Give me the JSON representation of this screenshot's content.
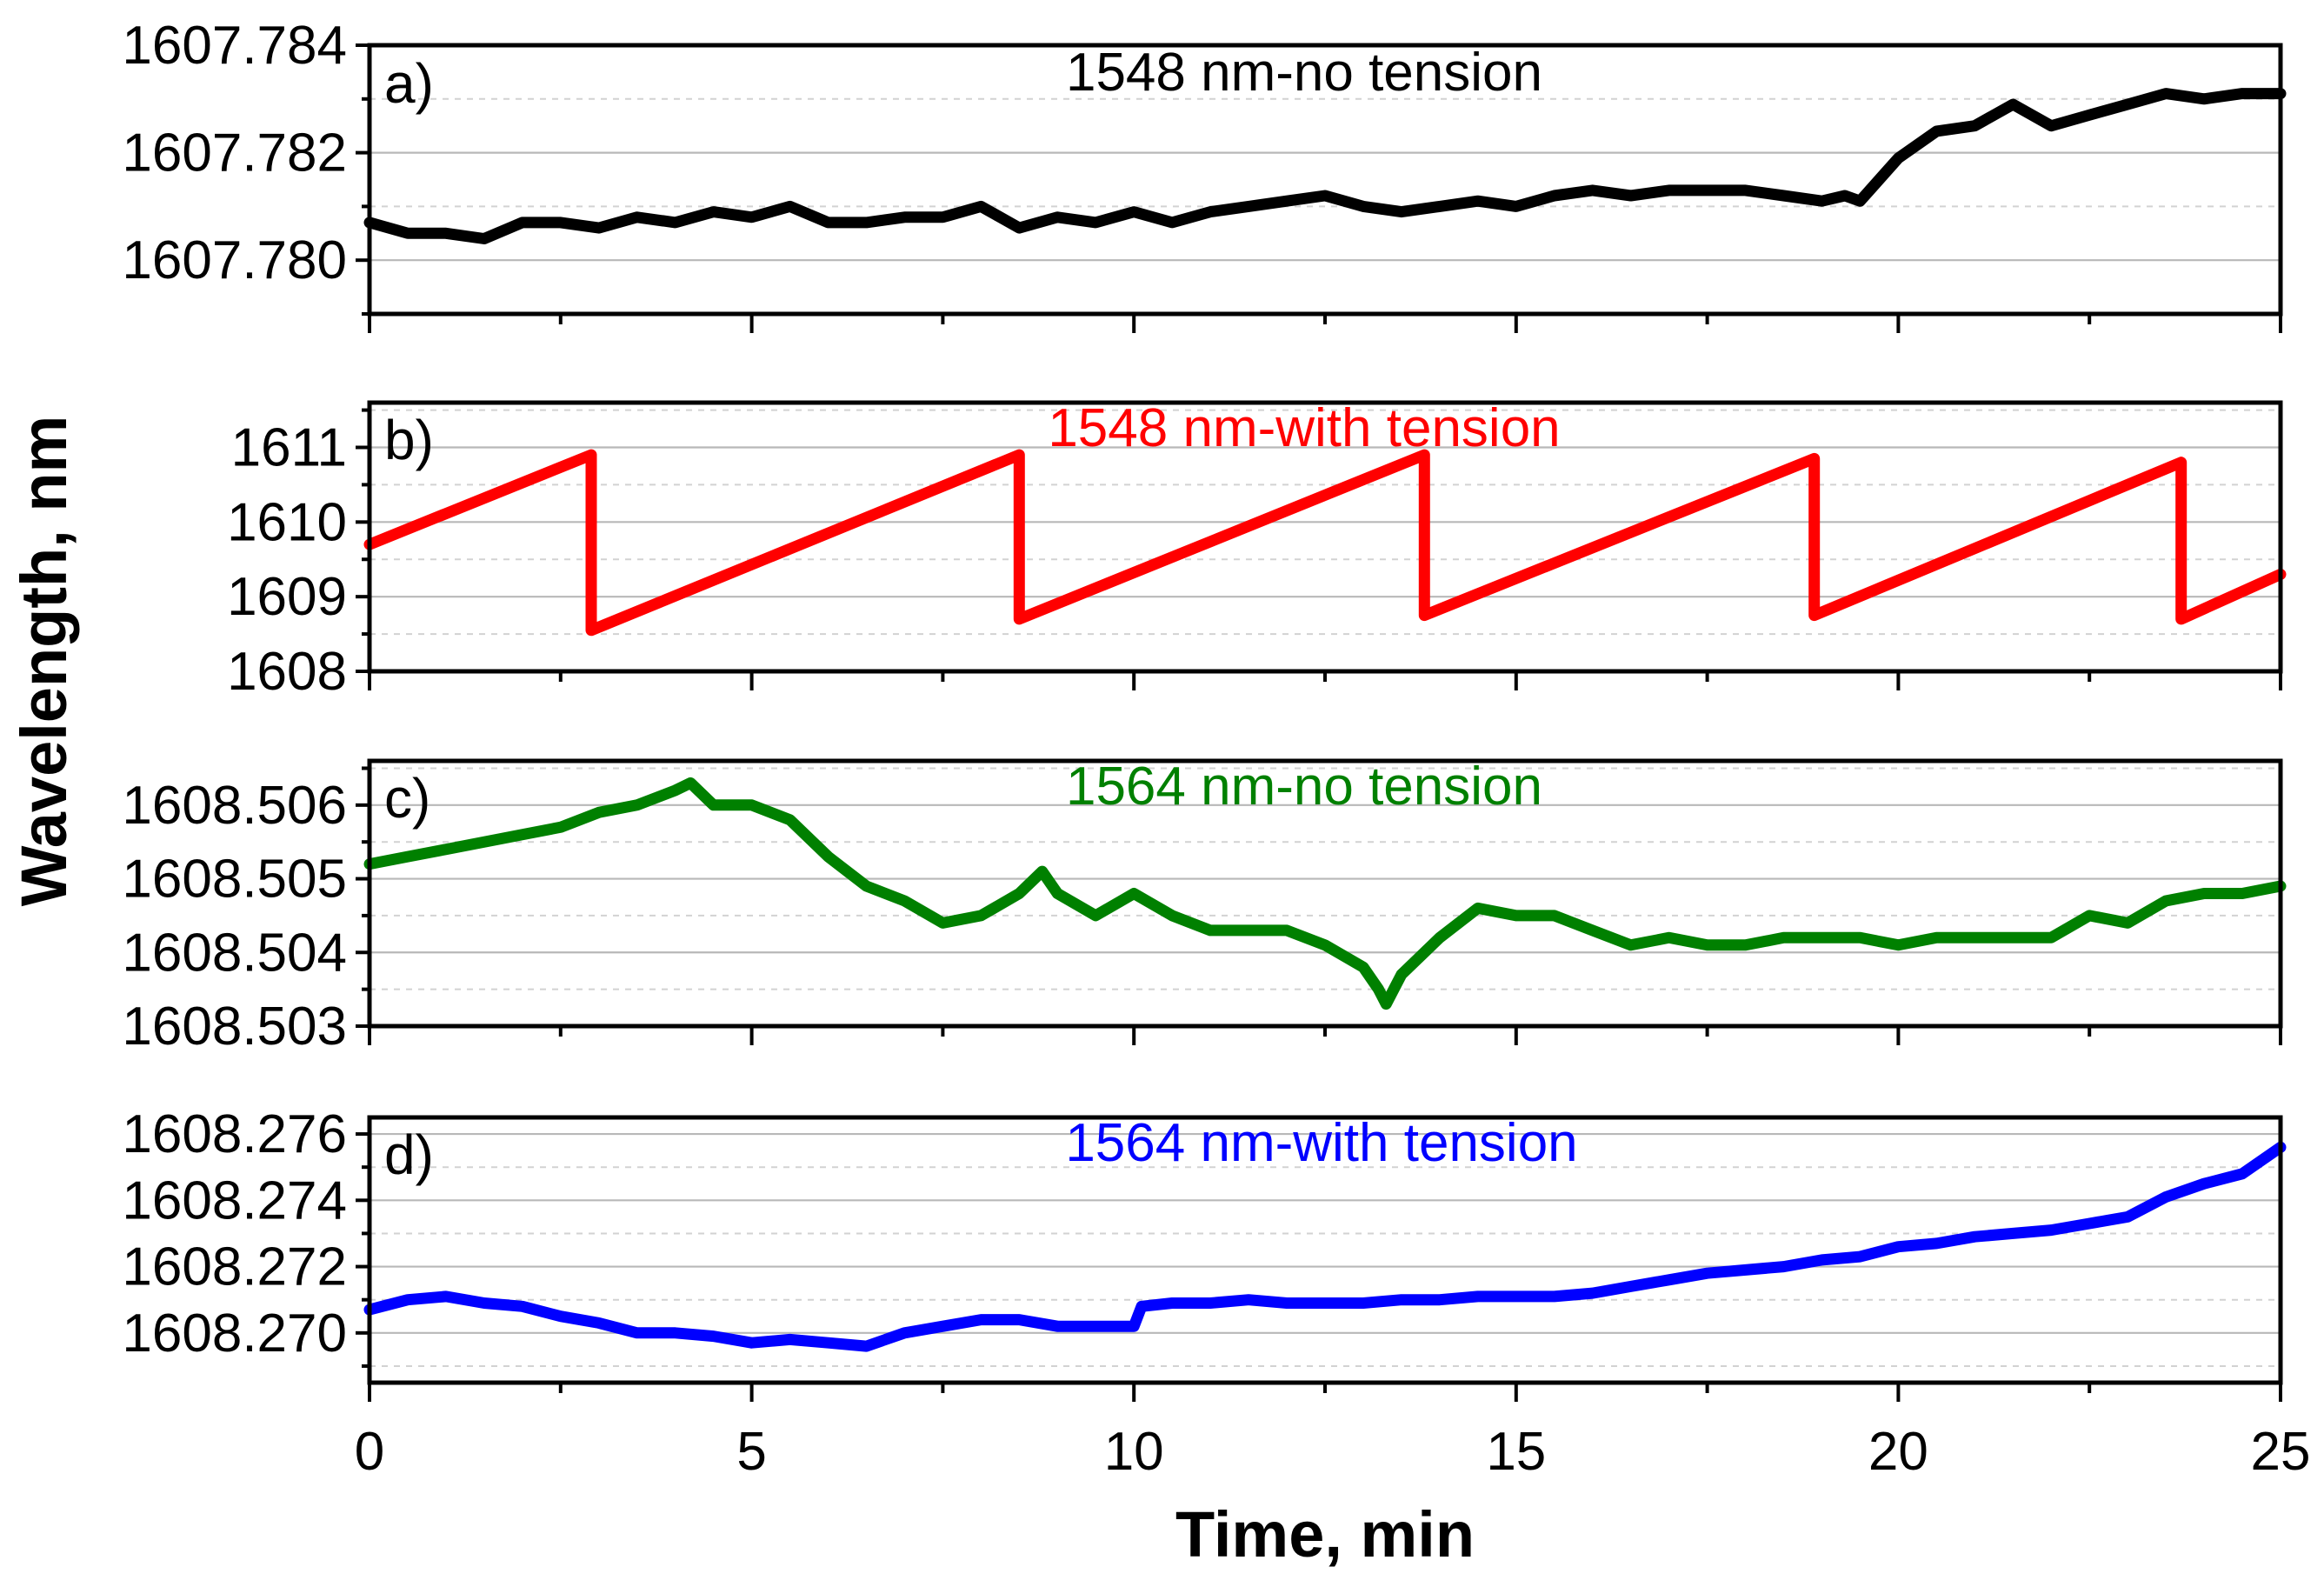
{
  "chart_data": {
    "type": "line",
    "shared_xlabel": "Time, min",
    "shared_ylabel": "Wavelength, nm",
    "xlim": [
      0,
      25
    ],
    "x_ticks": [
      "0",
      "5",
      "10",
      "15",
      "20",
      "25"
    ],
    "panels": [
      {
        "letter": "a)",
        "title": "1548 nm-no tension",
        "color": "#000000",
        "ylim": [
          1607.779,
          1607.784
        ],
        "y_ticks": [
          "1607.780",
          "1607.782",
          "1607.784"
        ],
        "y_tick_values": [
          1607.78,
          1607.782,
          1607.784
        ],
        "x": [
          0,
          0.5,
          1,
          1.5,
          2,
          2.5,
          3,
          3.5,
          4,
          4.5,
          5,
          5.5,
          6,
          6.5,
          7,
          7.5,
          8,
          8.5,
          9,
          9.5,
          10,
          10.5,
          11,
          11.5,
          12,
          12.5,
          13,
          13.5,
          14,
          14.5,
          15,
          15.5,
          16,
          16.5,
          17,
          17.5,
          18,
          18.5,
          19,
          19.3,
          19.5,
          20,
          20.5,
          21,
          21.5,
          22,
          22.5,
          23,
          23.5,
          24,
          24.5,
          25
        ],
        "y": [
          1607.7807,
          1607.7805,
          1607.7805,
          1607.7804,
          1607.7807,
          1607.7807,
          1607.7806,
          1607.7808,
          1607.7807,
          1607.7809,
          1607.7808,
          1607.781,
          1607.7807,
          1607.7807,
          1607.7808,
          1607.7808,
          1607.781,
          1607.7806,
          1607.7808,
          1607.7807,
          1607.7809,
          1607.7807,
          1607.7809,
          1607.781,
          1607.7811,
          1607.7812,
          1607.781,
          1607.7809,
          1607.781,
          1607.7811,
          1607.781,
          1607.7812,
          1607.7813,
          1607.7812,
          1607.7813,
          1607.7813,
          1607.7813,
          1607.7812,
          1607.7811,
          1607.7812,
          1607.7811,
          1607.7819,
          1607.7824,
          1607.7825,
          1607.7829,
          1607.7825,
          1607.7827,
          1607.7829,
          1607.7831,
          1607.783,
          1607.7831,
          1607.7831
        ]
      },
      {
        "letter": "b)",
        "title": "1548 nm-with tension",
        "color": "#ff0000",
        "ylim": [
          1608,
          1611.6
        ],
        "y_ticks": [
          "1608",
          "1609",
          "1610",
          "1611"
        ],
        "y_tick_values": [
          1608,
          1609,
          1610,
          1611
        ],
        "x": [
          0,
          2.9,
          2.9,
          8.5,
          8.5,
          13.8,
          13.8,
          18.9,
          18.9,
          23.7,
          23.7,
          25
        ],
        "y": [
          1609.7,
          1610.9,
          1608.55,
          1610.9,
          1608.7,
          1610.9,
          1608.75,
          1610.85,
          1608.75,
          1610.8,
          1608.7,
          1609.3
        ]
      },
      {
        "letter": "c)",
        "title": "1564 nm-no tension",
        "color": "#008000",
        "ylim": [
          1608.503,
          1608.5066
        ],
        "y_ticks": [
          "1608.503",
          "1608.504",
          "1608.505",
          "1608.506"
        ],
        "y_tick_values": [
          1608.503,
          1608.504,
          1608.505,
          1608.506
        ],
        "x": [
          0,
          0.5,
          1,
          1.5,
          2,
          2.5,
          3,
          3.5,
          4,
          4.2,
          4.5,
          5,
          5.5,
          6,
          6.5,
          7,
          7.5,
          8,
          8.5,
          8.8,
          9,
          9.5,
          10,
          10.5,
          11,
          11.5,
          12,
          12.5,
          13,
          13.2,
          13.3,
          13.5,
          14,
          14.5,
          15,
          15.5,
          16,
          16.5,
          17,
          17.5,
          18,
          18.5,
          19,
          19.5,
          20,
          20.5,
          21,
          21.5,
          22,
          22.5,
          23,
          23.5,
          24,
          24.5,
          25
        ],
        "y": [
          1608.5052,
          1608.5053,
          1608.5054,
          1608.5055,
          1608.5056,
          1608.5057,
          1608.5059,
          1608.506,
          1608.5062,
          1608.5063,
          1608.506,
          1608.506,
          1608.5058,
          1608.5053,
          1608.5049,
          1608.5047,
          1608.5044,
          1608.5045,
          1608.5048,
          1608.5051,
          1608.5048,
          1608.5045,
          1608.5048,
          1608.5045,
          1608.5043,
          1608.5043,
          1608.5043,
          1608.5041,
          1608.5038,
          1608.5035,
          1608.5033,
          1608.5037,
          1608.5042,
          1608.5046,
          1608.5045,
          1608.5045,
          1608.5043,
          1608.5041,
          1608.5042,
          1608.5041,
          1608.5041,
          1608.5042,
          1608.5042,
          1608.5042,
          1608.5041,
          1608.5042,
          1608.5042,
          1608.5042,
          1608.5042,
          1608.5045,
          1608.5044,
          1608.5047,
          1608.5048,
          1608.5048,
          1608.5049
        ]
      },
      {
        "letter": "d)",
        "title": "1564 nm-with tension",
        "color": "#0000ff",
        "ylim": [
          1608.2685,
          1608.2765
        ],
        "y_ticks": [
          "1608.270",
          "1608.272",
          "1608.274",
          "1608.276"
        ],
        "y_tick_values": [
          1608.27,
          1608.272,
          1608.274,
          1608.276
        ],
        "x": [
          0,
          0.5,
          1,
          1.5,
          2,
          2.5,
          3,
          3.5,
          4,
          4.5,
          5,
          5.5,
          6,
          6.5,
          7,
          7.5,
          8,
          8.5,
          9,
          9.5,
          10,
          10.1,
          10.5,
          11,
          11.5,
          12,
          12.5,
          13,
          13.5,
          14,
          14.5,
          15,
          15.5,
          16,
          16.5,
          17,
          17.5,
          18,
          18.5,
          19,
          19.5,
          20,
          20.5,
          21,
          21.5,
          22,
          22.5,
          23,
          23.5,
          24,
          24.5,
          25
        ],
        "y": [
          1608.2707,
          1608.271,
          1608.2711,
          1608.2709,
          1608.2708,
          1608.2705,
          1608.2703,
          1608.27,
          1608.27,
          1608.2699,
          1608.2697,
          1608.2698,
          1608.2697,
          1608.2696,
          1608.27,
          1608.2702,
          1608.2704,
          1608.2704,
          1608.2702,
          1608.2702,
          1608.2702,
          1608.2708,
          1608.2709,
          1608.2709,
          1608.271,
          1608.2709,
          1608.2709,
          1608.2709,
          1608.271,
          1608.271,
          1608.2711,
          1608.2711,
          1608.2711,
          1608.2712,
          1608.2714,
          1608.2716,
          1608.2718,
          1608.2719,
          1608.272,
          1608.2722,
          1608.2723,
          1608.2726,
          1608.2727,
          1608.2729,
          1608.273,
          1608.2731,
          1608.2733,
          1608.2735,
          1608.2741,
          1608.2745,
          1608.2748,
          1608.2756
        ]
      }
    ]
  }
}
